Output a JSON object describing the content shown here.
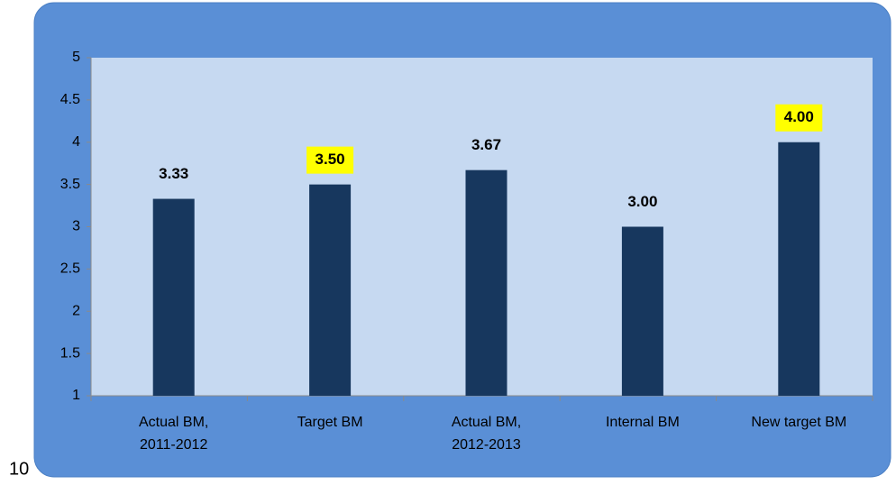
{
  "chart_data": {
    "type": "bar",
    "categories": [
      "Actual BM, 2011-2012",
      "Target BM",
      "Actual BM, 2012-2013",
      "Internal BM",
      "New target BM"
    ],
    "values": [
      3.33,
      3.5,
      3.67,
      3.0,
      4.0
    ],
    "value_labels": [
      "3.33",
      "3.50",
      "3.67",
      "3.00",
      "4.00"
    ],
    "highlight": [
      false,
      true,
      false,
      false,
      true
    ],
    "highlight_color": "#ffff00",
    "color": "#17375e",
    "ylim": [
      1,
      5
    ],
    "yticks": [
      1,
      1.5,
      2,
      2.5,
      3,
      3.5,
      4,
      4.5,
      5
    ],
    "grid": false
  },
  "page_number": "10"
}
